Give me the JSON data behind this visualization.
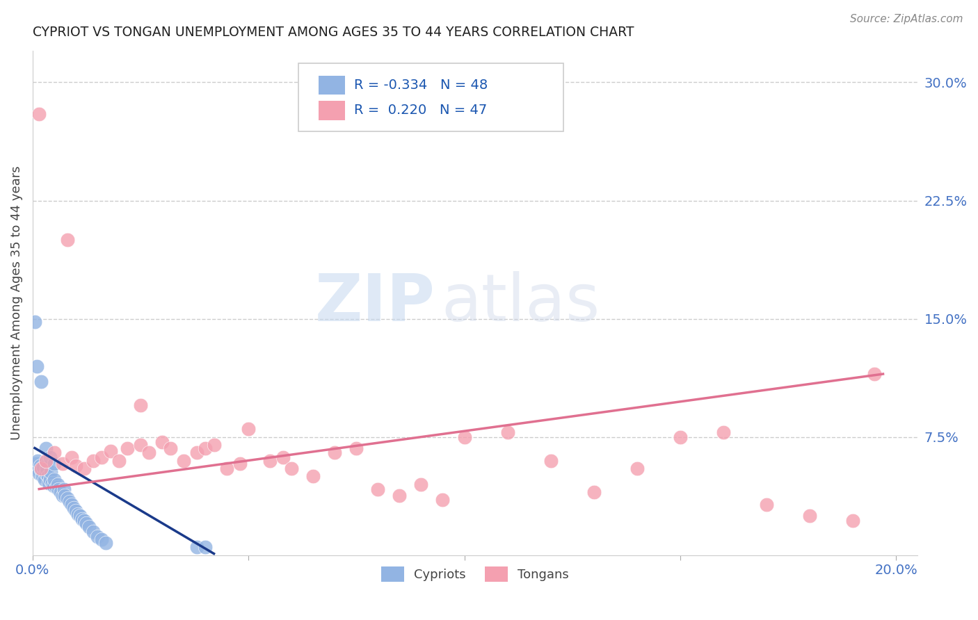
{
  "title": "CYPRIOT VS TONGAN UNEMPLOYMENT AMONG AGES 35 TO 44 YEARS CORRELATION CHART",
  "source": "Source: ZipAtlas.com",
  "ylabel": "Unemployment Among Ages 35 to 44 years",
  "xlim": [
    0.0,
    0.205
  ],
  "ylim": [
    0.0,
    0.32
  ],
  "yticks_right": [
    0.075,
    0.15,
    0.225,
    0.3
  ],
  "yticklabels_right": [
    "7.5%",
    "15.0%",
    "22.5%",
    "30.0%"
  ],
  "cypriot_color": "#92b4e3",
  "tongan_color": "#f4a0b0",
  "cypriot_line_color": "#1a3a8a",
  "tongan_line_color": "#e07090",
  "legend_R_cypriot": "-0.334",
  "legend_N_cypriot": "48",
  "legend_R_tongan": "0.220",
  "legend_N_tongan": "47",
  "background_color": "#ffffff",
  "cypriot_x": [
    0.0008,
    0.001,
    0.0012,
    0.0015,
    0.0018,
    0.002,
    0.0022,
    0.0025,
    0.0028,
    0.003,
    0.0032,
    0.0035,
    0.0038,
    0.004,
    0.0042,
    0.0045,
    0.0048,
    0.005,
    0.0055,
    0.0058,
    0.006,
    0.0065,
    0.007,
    0.0072,
    0.0075,
    0.008,
    0.0085,
    0.009,
    0.0095,
    0.01,
    0.0105,
    0.011,
    0.0115,
    0.012,
    0.0125,
    0.013,
    0.014,
    0.015,
    0.016,
    0.017,
    0.001,
    0.002,
    0.003,
    0.004,
    0.005,
    0.038,
    0.04,
    0.0005
  ],
  "cypriot_y": [
    0.058,
    0.055,
    0.06,
    0.052,
    0.057,
    0.054,
    0.05,
    0.056,
    0.048,
    0.052,
    0.055,
    0.05,
    0.046,
    0.048,
    0.053,
    0.046,
    0.044,
    0.048,
    0.043,
    0.045,
    0.042,
    0.04,
    0.038,
    0.042,
    0.038,
    0.036,
    0.034,
    0.032,
    0.03,
    0.028,
    0.026,
    0.025,
    0.023,
    0.022,
    0.02,
    0.018,
    0.015,
    0.012,
    0.01,
    0.008,
    0.12,
    0.11,
    0.068,
    0.062,
    0.058,
    0.005,
    0.005,
    0.148
  ],
  "tongan_x": [
    0.002,
    0.003,
    0.005,
    0.007,
    0.009,
    0.01,
    0.012,
    0.014,
    0.016,
    0.018,
    0.02,
    0.022,
    0.025,
    0.027,
    0.03,
    0.032,
    0.035,
    0.038,
    0.04,
    0.042,
    0.045,
    0.048,
    0.05,
    0.055,
    0.058,
    0.06,
    0.065,
    0.07,
    0.075,
    0.08,
    0.085,
    0.09,
    0.095,
    0.1,
    0.11,
    0.12,
    0.13,
    0.14,
    0.15,
    0.16,
    0.17,
    0.18,
    0.19,
    0.195,
    0.025,
    0.008,
    0.0015
  ],
  "tongan_y": [
    0.055,
    0.06,
    0.065,
    0.058,
    0.062,
    0.057,
    0.055,
    0.06,
    0.062,
    0.066,
    0.06,
    0.068,
    0.07,
    0.065,
    0.072,
    0.068,
    0.06,
    0.065,
    0.068,
    0.07,
    0.055,
    0.058,
    0.08,
    0.06,
    0.062,
    0.055,
    0.05,
    0.065,
    0.068,
    0.042,
    0.038,
    0.045,
    0.035,
    0.075,
    0.078,
    0.06,
    0.04,
    0.055,
    0.075,
    0.078,
    0.032,
    0.025,
    0.022,
    0.115,
    0.095,
    0.2,
    0.28
  ],
  "cypriot_trend_x": [
    0.0005,
    0.042
  ],
  "cypriot_trend_y": [
    0.068,
    0.001
  ],
  "tongan_trend_x": [
    0.0015,
    0.197
  ],
  "tongan_trend_y": [
    0.042,
    0.115
  ]
}
